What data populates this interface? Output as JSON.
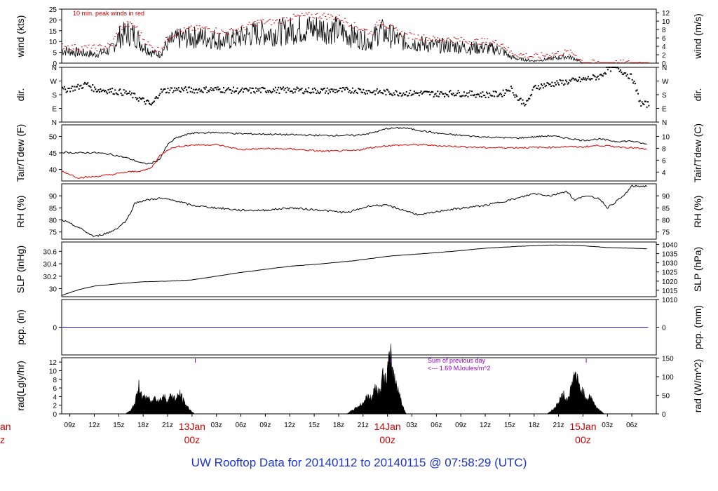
{
  "page": {
    "title": "UW Rooftop Data for 20140112  to  20140115 @ 07:58:29  (UTC)"
  },
  "colors": {
    "trace": "#000000",
    "peak": "#cc0000",
    "dewpoint": "#dd0000",
    "precip": "#1a1aee",
    "annotation_purple": "#9900cc",
    "date_label": "#cc0000",
    "title": "#1a33cc"
  },
  "chart_data": [
    {
      "type": "line",
      "panel": "wind",
      "ylabel_left": "wind (kts)",
      "ylabel_right": "wind (m/s)",
      "yticks_left": [
        0,
        5,
        10,
        15,
        20,
        25
      ],
      "yticks_right": [
        0,
        2,
        4,
        6,
        8,
        10,
        12
      ],
      "ylim": [
        0,
        25
      ],
      "annotation": "10 min. peak winds in red",
      "x_hours": [
        8,
        10,
        12,
        14,
        15,
        16,
        17,
        18,
        19,
        20,
        21,
        22,
        24,
        26,
        27,
        28,
        30,
        32,
        34,
        36,
        38,
        40,
        42,
        44,
        46,
        47,
        48,
        50,
        52,
        54,
        56,
        58,
        60,
        62,
        63,
        64,
        66,
        68,
        70,
        71,
        72,
        74,
        75,
        76,
        78,
        80
      ],
      "series": [
        {
          "values": [
            6,
            5,
            4,
            6,
            12,
            14,
            13,
            8,
            5,
            4,
            9,
            11,
            12,
            12,
            11,
            10,
            12,
            14,
            14,
            15,
            16,
            16,
            15,
            12,
            10,
            15,
            13,
            10,
            9,
            8,
            8,
            7,
            7,
            6,
            3,
            2,
            1,
            2,
            3,
            2,
            0,
            0,
            0,
            0,
            0,
            0
          ]
        },
        {
          "values": [
            8,
            7,
            7,
            8,
            16,
            18,
            17,
            11,
            7,
            6,
            12,
            14,
            16,
            16,
            15,
            14,
            16,
            19,
            19,
            21,
            22,
            22,
            21,
            17,
            14,
            20,
            17,
            13,
            12,
            11,
            11,
            10,
            10,
            9,
            5,
            4,
            3,
            4,
            5,
            4,
            0,
            0,
            0,
            0,
            0,
            0
          ]
        }
      ]
    },
    {
      "type": "scatter",
      "panel": "direction",
      "ylabel_left": "dir.",
      "ylabel_right": "dir.",
      "yticks_left": [
        "N",
        "E",
        "S",
        "W",
        "N"
      ],
      "yticks_right": [
        "N",
        "E",
        "S",
        "W",
        "N"
      ],
      "ylim": [
        0,
        360
      ],
      "x_hours": [
        8,
        10,
        11,
        12,
        14,
        16,
        18,
        19,
        20,
        21,
        22,
        24,
        27,
        30,
        33,
        36,
        40,
        44,
        46,
        48,
        50,
        52,
        54,
        56,
        58,
        60,
        62,
        63,
        64,
        65,
        66,
        68,
        70,
        72,
        74,
        75,
        76,
        78,
        79,
        80
      ],
      "series": [
        {
          "values": [
            210,
            230,
            250,
            215,
            205,
            190,
            140,
            110,
            200,
            210,
            215,
            210,
            215,
            205,
            210,
            210,
            205,
            210,
            200,
            195,
            190,
            190,
            185,
            190,
            185,
            180,
            185,
            225,
            150,
            120,
            230,
            250,
            265,
            280,
            300,
            350,
            360,
            290,
            120,
            115
          ]
        }
      ]
    },
    {
      "type": "line",
      "panel": "temperature",
      "ylabel_left": "Tair/Tdew (F)",
      "ylabel_right": "Tair/Tdew (C)",
      "yticks_left": [
        40,
        45,
        50
      ],
      "yticks_right": [
        4,
        6,
        8,
        10
      ],
      "ylim": [
        36.5,
        53.5
      ],
      "x_hours": [
        8,
        10,
        12,
        14,
        16,
        18,
        19,
        20,
        21,
        22,
        24,
        27,
        30,
        33,
        36,
        40,
        44,
        46,
        48,
        50,
        52,
        54,
        56,
        60,
        64,
        68,
        70,
        72,
        74,
        76,
        78,
        80
      ],
      "series": [
        {
          "values": [
            45.2,
            45.0,
            45.1,
            44.6,
            43.5,
            41.8,
            41.8,
            43.0,
            47.5,
            49.5,
            51.0,
            51.2,
            50.8,
            50.7,
            50.5,
            50.3,
            50.3,
            51.0,
            52.4,
            52.6,
            51.8,
            51.0,
            50.5,
            49.8,
            49.5,
            50.2,
            49.5,
            48.8,
            49.2,
            48.5,
            48.6,
            47.5
          ]
        },
        {
          "values": [
            39.5,
            37.5,
            37.8,
            38.4,
            39.2,
            39.6,
            40.5,
            44.0,
            46.0,
            46.8,
            47.4,
            47.5,
            46.0,
            46.3,
            46.2,
            45.5,
            45.7,
            46.6,
            47.2,
            47.4,
            47.5,
            47.2,
            47.0,
            46.6,
            46.6,
            46.7,
            46.9,
            46.8,
            47.3,
            46.9,
            46.6,
            46.0
          ]
        }
      ]
    },
    {
      "type": "line",
      "panel": "humidity",
      "ylabel_left": "RH (%)",
      "ylabel_right": "RH (%)",
      "yticks_left": [
        75,
        80,
        85,
        90
      ],
      "yticks_right": [
        75,
        80,
        85,
        90
      ],
      "ylim": [
        72,
        95
      ],
      "x_hours": [
        8,
        10,
        12,
        14,
        15,
        16,
        17,
        18,
        20,
        22,
        24,
        27,
        30,
        33,
        36,
        40,
        43,
        46,
        48,
        50,
        52,
        55,
        60,
        64,
        66,
        68,
        70,
        71,
        72,
        74,
        75,
        77,
        78,
        80
      ],
      "series": [
        {
          "values": [
            80,
            77,
            73,
            75,
            77,
            80,
            87,
            88,
            89,
            88,
            86,
            85,
            84,
            84,
            85,
            84,
            83,
            86,
            86,
            84,
            82,
            84,
            86,
            89,
            91,
            90,
            92,
            88,
            90,
            89,
            85,
            90,
            94,
            94
          ]
        }
      ]
    },
    {
      "type": "line",
      "panel": "pressure",
      "ylabel_left": "SLP (inHg)",
      "ylabel_right": "SLP (hPa)",
      "yticks_left": [
        30.0,
        30.2,
        30.4,
        30.6
      ],
      "yticks_right": [
        1010,
        1015,
        1020,
        1025,
        1030,
        1035,
        1040
      ],
      "ylim": [
        29.87,
        30.75
      ],
      "x_hours": [
        8,
        10,
        12,
        15,
        18,
        21,
        24,
        30,
        36,
        40,
        44,
        48,
        52,
        56,
        60,
        64,
        68,
        70,
        72,
        75,
        78,
        80
      ],
      "series": [
        {
          "values": [
            29.89,
            29.98,
            30.04,
            30.08,
            30.11,
            30.12,
            30.14,
            30.26,
            30.36,
            30.4,
            30.45,
            30.52,
            30.56,
            30.6,
            30.65,
            30.68,
            30.7,
            30.7,
            30.69,
            30.66,
            30.65,
            30.64
          ]
        }
      ]
    },
    {
      "type": "line",
      "panel": "precipitation",
      "ylabel_left": "pcp. (in)",
      "ylabel_right": "pcp. (mm)",
      "yticks_left": [
        0
      ],
      "yticks_right": [
        0
      ],
      "ylim": [
        -1,
        1
      ],
      "x_hours": [
        8,
        80
      ],
      "series": [
        {
          "values": [
            0,
            0
          ]
        }
      ]
    },
    {
      "type": "area",
      "panel": "radiation",
      "ylabel_left": "rad(Lgly/hr)",
      "ylabel_right": "rad (W/m^2)",
      "yticks_left": [
        0,
        2,
        4,
        6,
        8,
        10,
        12
      ],
      "yticks_right": [
        0,
        50,
        100,
        150
      ],
      "ylim": [
        0,
        13
      ],
      "annotation_lines": [
        "Sum of previous day",
        "<--- 1.69 MJoules/m^2"
      ],
      "day_markers_hours": [
        24.4,
        48.4,
        72.4
      ],
      "x_hours": [
        15.8,
        16.5,
        17.0,
        17.5,
        18.0,
        18.5,
        19.0,
        19.5,
        20.0,
        20.5,
        21.0,
        21.5,
        22.0,
        22.5,
        23.0,
        23.5,
        24.0,
        24.3
      ],
      "series": [
        {
          "values": [
            0,
            0.8,
            2.5,
            6.5,
            3.5,
            4.0,
            2.5,
            4.0,
            3.0,
            4.2,
            3.0,
            4.5,
            3.2,
            4.8,
            2.8,
            1.5,
            0.5,
            0
          ]
        }
      ]
    }
  ],
  "x_axis": {
    "tick_labels": [
      "09z",
      "12z",
      "15z",
      "18z",
      "21z",
      "03z",
      "06z",
      "09z",
      "12z",
      "15z",
      "18z",
      "21z",
      "03z",
      "06z",
      "09z",
      "12z",
      "15z",
      "18z",
      "21z",
      "03z",
      "06z"
    ],
    "tick_hours": [
      9,
      12,
      15,
      18,
      21,
      27,
      30,
      33,
      36,
      39,
      42,
      45,
      51,
      54,
      57,
      60,
      63,
      66,
      69,
      75,
      78
    ],
    "day_labels": [
      {
        "date": "13Jan",
        "time": "00z",
        "hour": 24
      },
      {
        "date": "14Jan",
        "time": "00z",
        "hour": 48
      },
      {
        "date": "15Jan",
        "time": "00z",
        "hour": 72
      }
    ],
    "clipped_left": {
      "date": "an",
      "time": "z"
    },
    "range_hours": [
      8,
      81
    ]
  }
}
